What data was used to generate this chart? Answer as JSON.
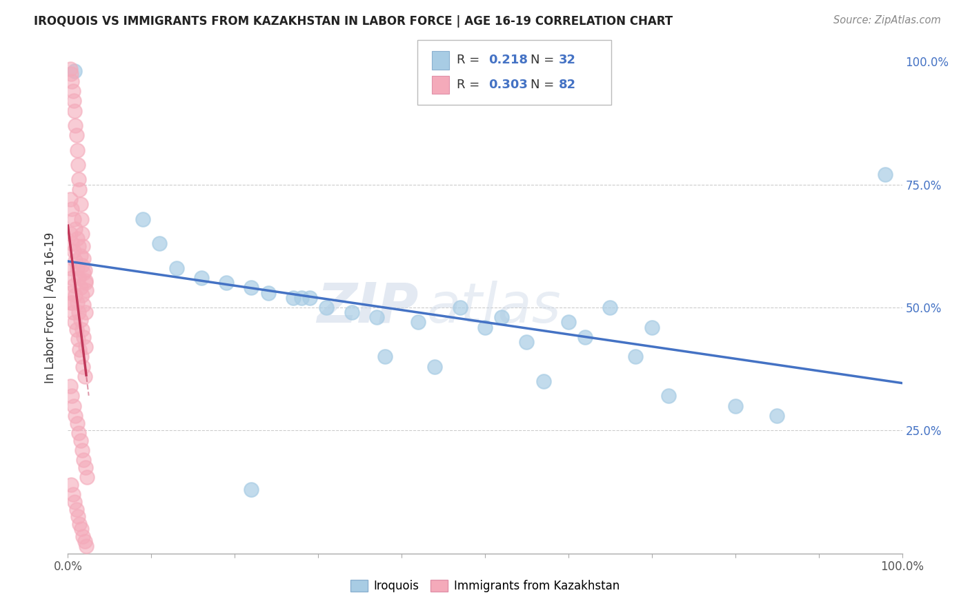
{
  "title": "IROQUOIS VS IMMIGRANTS FROM KAZAKHSTAN IN LABOR FORCE | AGE 16-19 CORRELATION CHART",
  "source": "Source: ZipAtlas.com",
  "ylabel": "In Labor Force | Age 16-19",
  "R_blue": 0.218,
  "N_blue": 32,
  "R_pink": 0.303,
  "N_pink": 82,
  "blue_scatter_color": "#a8cce4",
  "pink_scatter_color": "#f4aaba",
  "blue_line_color": "#4472c4",
  "pink_line_color": "#c0385a",
  "background_color": "#ffffff",
  "watermark_top": "ZIP",
  "watermark_bottom": "atlas",
  "legend_blue_label": "Iroquois",
  "legend_pink_label": "Immigrants from Kazakhstan",
  "blue_x": [
    0.008,
    0.09,
    0.11,
    0.13,
    0.16,
    0.19,
    0.22,
    0.24,
    0.27,
    0.29,
    0.31,
    0.34,
    0.37,
    0.28,
    0.42,
    0.47,
    0.52,
    0.6,
    0.65,
    0.7,
    0.5,
    0.55,
    0.62,
    0.68,
    0.38,
    0.44,
    0.57,
    0.72,
    0.8,
    0.85,
    0.22,
    0.98
  ],
  "blue_y": [
    0.98,
    0.68,
    0.63,
    0.58,
    0.56,
    0.55,
    0.54,
    0.53,
    0.52,
    0.52,
    0.5,
    0.49,
    0.48,
    0.52,
    0.47,
    0.5,
    0.48,
    0.47,
    0.5,
    0.46,
    0.46,
    0.43,
    0.44,
    0.4,
    0.4,
    0.38,
    0.35,
    0.32,
    0.3,
    0.28,
    0.13,
    0.77
  ],
  "pink_x": [
    0.003,
    0.004,
    0.005,
    0.006,
    0.007,
    0.008,
    0.009,
    0.01,
    0.011,
    0.012,
    0.013,
    0.014,
    0.015,
    0.016,
    0.017,
    0.018,
    0.019,
    0.02,
    0.021,
    0.022,
    0.004,
    0.006,
    0.008,
    0.01,
    0.012,
    0.014,
    0.016,
    0.018,
    0.02,
    0.003,
    0.005,
    0.007,
    0.009,
    0.011,
    0.013,
    0.015,
    0.017,
    0.019,
    0.021,
    0.023,
    0.004,
    0.006,
    0.008,
    0.01,
    0.012,
    0.014,
    0.016,
    0.018,
    0.02,
    0.022,
    0.003,
    0.005,
    0.007,
    0.009,
    0.011,
    0.013,
    0.015,
    0.017,
    0.019,
    0.021,
    0.003,
    0.005,
    0.007,
    0.009,
    0.011,
    0.013,
    0.015,
    0.017,
    0.019,
    0.021,
    0.003,
    0.005,
    0.007,
    0.009,
    0.011,
    0.013,
    0.015,
    0.017,
    0.019,
    0.021,
    0.003,
    0.005
  ],
  "pink_y": [
    0.985,
    0.975,
    0.96,
    0.94,
    0.92,
    0.9,
    0.87,
    0.85,
    0.82,
    0.79,
    0.76,
    0.74,
    0.71,
    0.68,
    0.65,
    0.625,
    0.6,
    0.575,
    0.555,
    0.535,
    0.51,
    0.49,
    0.47,
    0.455,
    0.435,
    0.415,
    0.4,
    0.38,
    0.36,
    0.34,
    0.32,
    0.3,
    0.28,
    0.265,
    0.245,
    0.23,
    0.21,
    0.19,
    0.175,
    0.155,
    0.14,
    0.12,
    0.105,
    0.09,
    0.075,
    0.06,
    0.05,
    0.035,
    0.025,
    0.015,
    0.58,
    0.56,
    0.545,
    0.525,
    0.51,
    0.49,
    0.475,
    0.455,
    0.44,
    0.42,
    0.65,
    0.63,
    0.615,
    0.595,
    0.58,
    0.56,
    0.54,
    0.525,
    0.505,
    0.49,
    0.72,
    0.7,
    0.68,
    0.66,
    0.64,
    0.625,
    0.605,
    0.585,
    0.57,
    0.55,
    0.53,
    0.51
  ]
}
